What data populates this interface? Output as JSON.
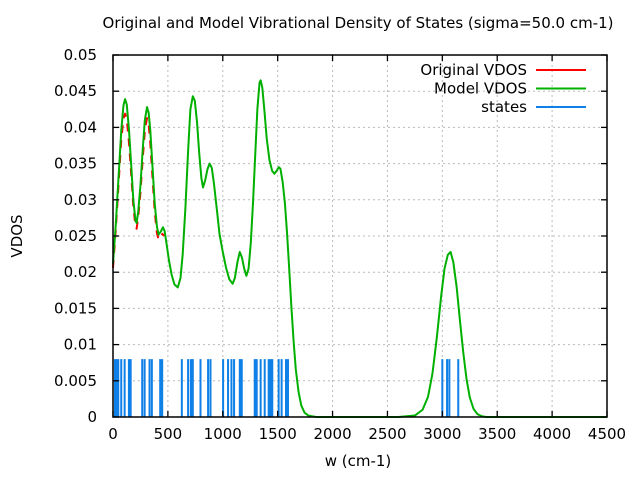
{
  "chart_data": {
    "type": "line",
    "title": "Original and Model Vibrational Density of States (sigma=50.0 cm-1)",
    "xlabel": "w (cm-1)",
    "ylabel": "VDOS",
    "xlim": [
      0,
      4500
    ],
    "ylim": [
      0,
      0.05
    ],
    "xticks": {
      "values": [
        0,
        500,
        1000,
        1500,
        2000,
        2500,
        3000,
        3500,
        4000,
        4500
      ],
      "labels": [
        "0",
        "500",
        "1000",
        "1500",
        "2000",
        "2500",
        "3000",
        "3500",
        "4000",
        "4500"
      ]
    },
    "yticks": {
      "values": [
        0,
        0.005,
        0.01,
        0.015,
        0.02,
        0.025,
        0.03,
        0.035,
        0.04,
        0.045,
        0.05
      ],
      "labels": [
        "0",
        "0.005",
        "0.01",
        "0.015",
        "0.02",
        "0.025",
        "0.03",
        "0.035",
        "0.04",
        "0.045",
        "0.05"
      ]
    },
    "grid": true,
    "legend_position": "top-right-inside",
    "colors": {
      "original": "#ff0000",
      "model": "#00b000",
      "states": "#0f80e8",
      "grid": "#bbbbbb",
      "frame": "#000000"
    },
    "series": [
      {
        "name": "Original VDOS",
        "color": "#ff0000",
        "style": "dashed-line",
        "points": [
          [
            0,
            0.0206
          ],
          [
            25,
            0.0258
          ],
          [
            50,
            0.032
          ],
          [
            75,
            0.0382
          ],
          [
            95,
            0.0412
          ],
          [
            110,
            0.0419
          ],
          [
            125,
            0.0412
          ],
          [
            145,
            0.038
          ],
          [
            165,
            0.0337
          ],
          [
            185,
            0.0291
          ],
          [
            205,
            0.0263
          ],
          [
            215,
            0.026
          ],
          [
            230,
            0.0276
          ],
          [
            250,
            0.031
          ],
          [
            270,
            0.0355
          ],
          [
            290,
            0.0395
          ],
          [
            310,
            0.0413
          ],
          [
            325,
            0.0404
          ],
          [
            340,
            0.0378
          ],
          [
            360,
            0.033
          ],
          [
            380,
            0.0284
          ],
          [
            400,
            0.0254
          ],
          [
            415,
            0.0245
          ],
          [
            435,
            0.0249
          ],
          [
            450,
            0.0253
          ],
          [
            465,
            0.025
          ]
        ]
      },
      {
        "name": "Model VDOS",
        "color": "#00b000",
        "style": "solid-line",
        "points": [
          [
            0,
            0.0212
          ],
          [
            25,
            0.0265
          ],
          [
            50,
            0.033
          ],
          [
            75,
            0.0395
          ],
          [
            95,
            0.043
          ],
          [
            110,
            0.0439
          ],
          [
            125,
            0.0432
          ],
          [
            145,
            0.0398
          ],
          [
            165,
            0.035
          ],
          [
            185,
            0.03
          ],
          [
            205,
            0.0271
          ],
          [
            215,
            0.0268
          ],
          [
            230,
            0.0284
          ],
          [
            250,
            0.032
          ],
          [
            270,
            0.0368
          ],
          [
            290,
            0.041
          ],
          [
            310,
            0.0428
          ],
          [
            325,
            0.042
          ],
          [
            340,
            0.0395
          ],
          [
            360,
            0.0345
          ],
          [
            380,
            0.0295
          ],
          [
            400,
            0.0263
          ],
          [
            415,
            0.0252
          ],
          [
            435,
            0.0256
          ],
          [
            455,
            0.0262
          ],
          [
            470,
            0.0257
          ],
          [
            490,
            0.0237
          ],
          [
            510,
            0.0216
          ],
          [
            535,
            0.0196
          ],
          [
            560,
            0.0183
          ],
          [
            590,
            0.0179
          ],
          [
            615,
            0.0192
          ],
          [
            635,
            0.0225
          ],
          [
            660,
            0.029
          ],
          [
            685,
            0.037
          ],
          [
            705,
            0.0425
          ],
          [
            727,
            0.0443
          ],
          [
            745,
            0.0437
          ],
          [
            765,
            0.0408
          ],
          [
            785,
            0.0365
          ],
          [
            805,
            0.033
          ],
          [
            820,
            0.0317
          ],
          [
            840,
            0.0327
          ],
          [
            860,
            0.0342
          ],
          [
            880,
            0.035
          ],
          [
            900,
            0.0344
          ],
          [
            920,
            0.0322
          ],
          [
            945,
            0.0288
          ],
          [
            970,
            0.0253
          ],
          [
            1000,
            0.0228
          ],
          [
            1030,
            0.0206
          ],
          [
            1060,
            0.019
          ],
          [
            1090,
            0.0184
          ],
          [
            1110,
            0.0192
          ],
          [
            1135,
            0.0215
          ],
          [
            1155,
            0.0228
          ],
          [
            1175,
            0.022
          ],
          [
            1195,
            0.0205
          ],
          [
            1215,
            0.0195
          ],
          [
            1235,
            0.0205
          ],
          [
            1255,
            0.024
          ],
          [
            1275,
            0.0295
          ],
          [
            1295,
            0.036
          ],
          [
            1315,
            0.0425
          ],
          [
            1335,
            0.0462
          ],
          [
            1345,
            0.0465
          ],
          [
            1360,
            0.0455
          ],
          [
            1380,
            0.0422
          ],
          [
            1400,
            0.0385
          ],
          [
            1425,
            0.0355
          ],
          [
            1450,
            0.034
          ],
          [
            1470,
            0.0336
          ],
          [
            1490,
            0.034
          ],
          [
            1510,
            0.0345
          ],
          [
            1525,
            0.0343
          ],
          [
            1545,
            0.0325
          ],
          [
            1565,
            0.0297
          ],
          [
            1585,
            0.0255
          ],
          [
            1605,
            0.0205
          ],
          [
            1625,
            0.0152
          ],
          [
            1645,
            0.0105
          ],
          [
            1665,
            0.0066
          ],
          [
            1690,
            0.0035
          ],
          [
            1715,
            0.0016
          ],
          [
            1745,
            0.0006
          ],
          [
            1780,
            0.0002
          ],
          [
            1850,
            0
          ],
          [
            2000,
            0
          ],
          [
            2200,
            0
          ],
          [
            2400,
            0
          ],
          [
            2600,
            0
          ],
          [
            2750,
            0.0002
          ],
          [
            2820,
            0.001
          ],
          [
            2870,
            0.0028
          ],
          [
            2910,
            0.006
          ],
          [
            2950,
            0.011
          ],
          [
            2990,
            0.0168
          ],
          [
            3020,
            0.0205
          ],
          [
            3050,
            0.0224
          ],
          [
            3075,
            0.0228
          ],
          [
            3100,
            0.0214
          ],
          [
            3130,
            0.018
          ],
          [
            3160,
            0.0134
          ],
          [
            3190,
            0.009
          ],
          [
            3220,
            0.0053
          ],
          [
            3250,
            0.0027
          ],
          [
            3285,
            0.0011
          ],
          [
            3320,
            0.0004
          ],
          [
            3360,
            0.0001
          ],
          [
            3400,
            0
          ],
          [
            3600,
            0
          ],
          [
            3800,
            0
          ],
          [
            4000,
            0
          ],
          [
            4250,
            0
          ],
          [
            4500,
            0
          ]
        ]
      },
      {
        "name": "states",
        "color": "#0f80e8",
        "style": "impulses",
        "height": 0.008,
        "x": [
          18,
          34,
          48,
          75,
          106,
          145,
          161,
          266,
          288,
          333,
          354,
          430,
          448,
          627,
          684,
          709,
          727,
          797,
          866,
          888,
          1003,
          1048,
          1079,
          1103,
          1155,
          1173,
          1291,
          1309,
          1345,
          1382,
          1418,
          1436,
          1451,
          1509,
          1536,
          1576,
          1594,
          3000,
          3043,
          3064,
          3145
        ]
      }
    ]
  }
}
